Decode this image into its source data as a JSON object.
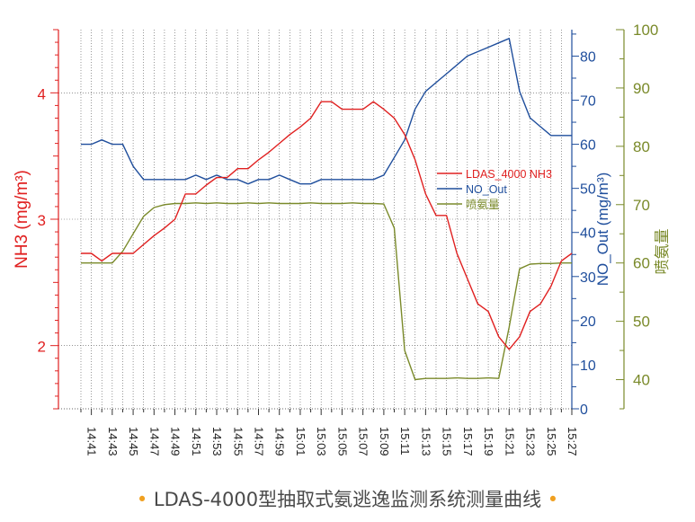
{
  "chart_data": {
    "type": "line",
    "x": [
      "14:40",
      "14:41",
      "14:42",
      "14:43",
      "14:44",
      "14:45",
      "14:46",
      "14:47",
      "14:48",
      "14:49",
      "14:50",
      "14:51",
      "14:52",
      "14:53",
      "14:54",
      "14:55",
      "14:56",
      "14:57",
      "14:58",
      "14:59",
      "15:00",
      "15:01",
      "15:02",
      "15:03",
      "15:04",
      "15:05",
      "15:06",
      "15:07",
      "15:08",
      "15:09",
      "15:10",
      "15:11",
      "15:12",
      "15:13",
      "15:14",
      "15:15",
      "15:16",
      "15:17",
      "15:18",
      "15:19",
      "15:20",
      "15:21",
      "15:22",
      "15:23",
      "15:24",
      "15:25",
      "15:26",
      "15:27"
    ],
    "x_tick_labels": [
      "14:41",
      "14:43",
      "14:45",
      "14:47",
      "14:49",
      "14:51",
      "14:53",
      "14:55",
      "14:57",
      "14:59",
      "15:01",
      "15:03",
      "15:05",
      "15:07",
      "15:09",
      "15:11",
      "15:13",
      "15:15",
      "15:17",
      "15:19",
      "15:21",
      "15:23",
      "15:25",
      "15:27"
    ],
    "series": [
      {
        "name": "LDAS_4000 NH3",
        "axis": "left",
        "color": "#e02020",
        "values": [
          2.73,
          2.73,
          2.67,
          2.73,
          2.73,
          2.73,
          2.8,
          2.87,
          2.93,
          3.0,
          3.2,
          3.2,
          3.27,
          3.33,
          3.33,
          3.4,
          3.4,
          3.47,
          3.53,
          3.6,
          3.67,
          3.73,
          3.8,
          3.93,
          3.93,
          3.87,
          3.87,
          3.87,
          3.93,
          3.87,
          3.8,
          3.67,
          3.47,
          3.2,
          3.03,
          3.03,
          2.73,
          2.53,
          2.33,
          2.27,
          2.07,
          1.97,
          2.07,
          2.27,
          2.33,
          2.47,
          2.67,
          2.73
        ]
      },
      {
        "name": "NO_Out",
        "axis": "right1",
        "color": "#1f4e9c",
        "values": [
          60,
          60,
          61,
          60,
          60,
          55,
          52,
          52,
          52,
          52,
          52,
          53,
          52,
          53,
          52,
          52,
          51,
          52,
          52,
          53,
          52,
          51,
          51,
          52,
          52,
          52,
          52,
          52,
          52,
          53,
          57,
          61,
          68,
          72,
          74,
          76,
          78,
          80,
          81,
          82,
          83,
          84,
          72,
          66,
          64,
          62,
          62,
          62
        ]
      },
      {
        "name": "喷氨量",
        "axis": "right2",
        "color": "#7a8a2a",
        "values": [
          60.0,
          60.0,
          60.0,
          60.0,
          62.0,
          65.0,
          68.0,
          69.5,
          70.0,
          70.2,
          70.2,
          70.3,
          70.2,
          70.3,
          70.2,
          70.2,
          70.3,
          70.2,
          70.3,
          70.2,
          70.2,
          70.2,
          70.3,
          70.2,
          70.2,
          70.2,
          70.3,
          70.2,
          70.2,
          70.1,
          66.0,
          45.0,
          40.0,
          40.2,
          40.2,
          40.2,
          40.3,
          40.2,
          40.2,
          40.3,
          40.2,
          49.0,
          59.0,
          59.8,
          59.9,
          59.9,
          60.0,
          60.0
        ]
      }
    ],
    "y_left": {
      "label": "NH3 (mg/m³)",
      "ticks": [
        "2",
        "3",
        "4"
      ],
      "range": [
        1.5,
        4.5
      ],
      "color": "#e02020"
    },
    "y_right1": {
      "label": "NO_Out (mg/m³)",
      "ticks": [
        "0",
        "10",
        "20",
        "30",
        "40",
        "50",
        "60",
        "70",
        "80"
      ],
      "range": [
        0,
        86
      ],
      "color": "#1f4e9c"
    },
    "y_right2": {
      "label": "喷氨量",
      "ticks": [
        "40",
        "50",
        "60",
        "70",
        "80",
        "90",
        "100"
      ],
      "range": [
        35,
        100
      ],
      "color": "#7a8a2a"
    },
    "grid": "dotted",
    "legend_position": "right-middle"
  },
  "caption": {
    "dot_left": "•",
    "text": "LDAS-4000型抽取式氨逃逸监测系统测量曲线",
    "dot_right": "•"
  }
}
